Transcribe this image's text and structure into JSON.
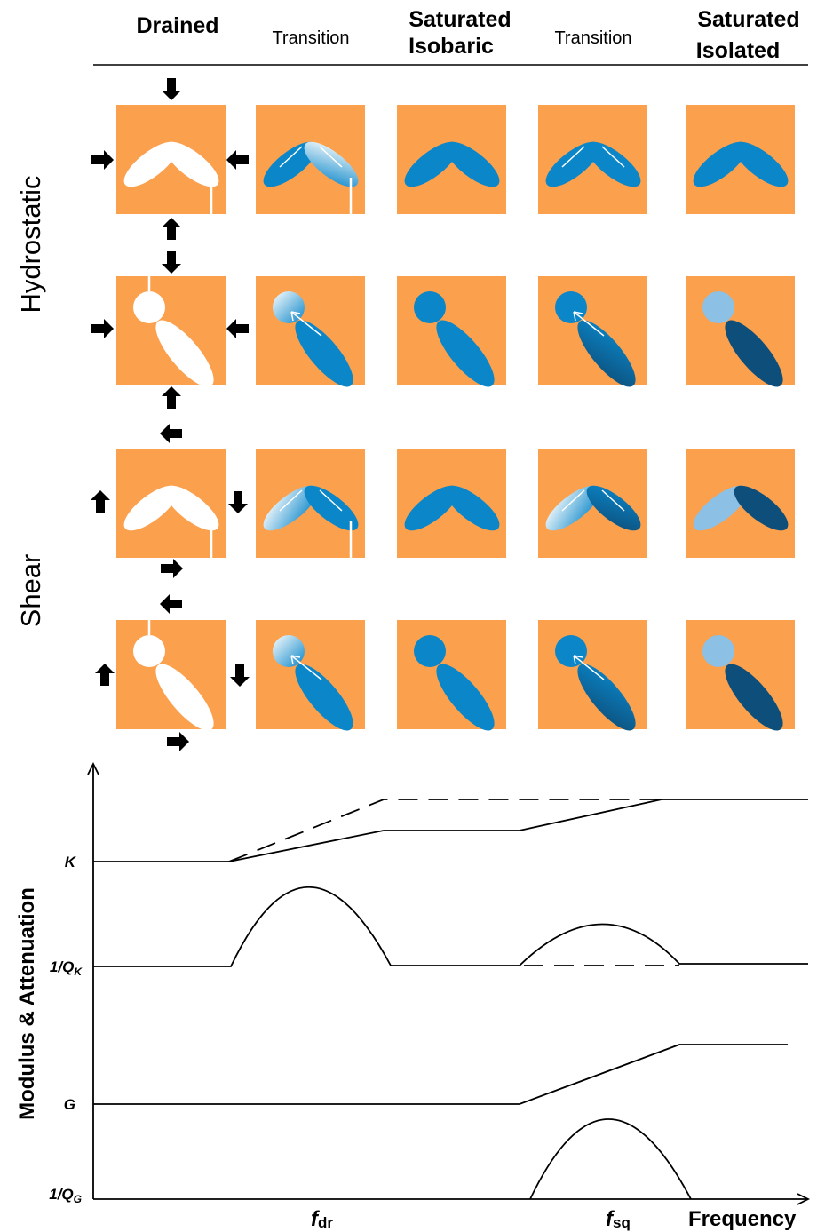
{
  "columns": [
    [
      "Drained"
    ],
    [
      "Transition"
    ],
    [
      "Saturated",
      "Isobaric"
    ],
    [
      "Transition"
    ],
    [
      "Saturated",
      "Isolated"
    ]
  ],
  "rows": [
    "Hydrostatic",
    "Shear"
  ],
  "axis": {
    "y_label": "Modulus & Attenuation",
    "x_label": "Frequency"
  },
  "curve_labels": [
    {
      "text": "K"
    },
    {
      "text": "1/Q",
      "sub": "K"
    },
    {
      "text": "G"
    },
    {
      "text": "1/Q",
      "sub": "G"
    }
  ],
  "frequency_marks": [
    {
      "text": "f",
      "sub": "dr"
    },
    {
      "text": "f",
      "sub": "sq"
    }
  ]
}
